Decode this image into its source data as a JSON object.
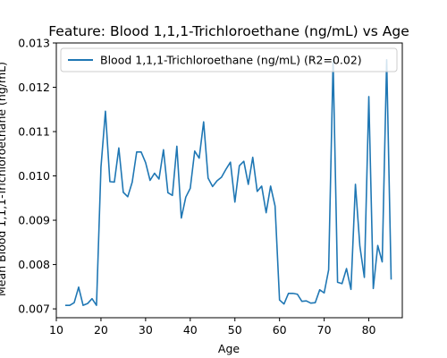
{
  "chart_data": {
    "type": "line",
    "title": "Feature: Blood 1,1,1-Trichloroethane (ng/mL) vs Age",
    "xlabel": "Age",
    "ylabel": "Mean Blood 1,1,1-Trichloroethane (ng/mL)",
    "xlim": [
      10,
      87.5
    ],
    "ylim": [
      0.0068,
      0.013
    ],
    "xticks": [
      10,
      20,
      30,
      40,
      50,
      60,
      70,
      80
    ],
    "yticks": [
      0.007,
      0.008,
      0.009,
      0.01,
      0.011,
      0.012,
      0.013
    ],
    "ytick_labels": [
      "0.007",
      "0.008",
      "0.009",
      "0.010",
      "0.011",
      "0.012",
      "0.013"
    ],
    "grid": false,
    "legend": {
      "position": "top-left"
    },
    "series": [
      {
        "name": "Blood 1,1,1-Trichloroethane (ng/mL) (R2=0.02)",
        "color": "#1f77b4",
        "x": [
          12,
          13,
          14,
          15,
          16,
          17,
          18,
          19,
          20,
          21,
          22,
          23,
          24,
          25,
          26,
          27,
          28,
          29,
          30,
          31,
          32,
          33,
          34,
          35,
          36,
          37,
          38,
          39,
          40,
          41,
          42,
          43,
          44,
          45,
          46,
          47,
          48,
          49,
          50,
          51,
          52,
          53,
          54,
          55,
          56,
          57,
          58,
          59,
          60,
          61,
          62,
          63,
          64,
          65,
          66,
          67,
          68,
          69,
          70,
          71,
          72,
          73,
          74,
          75,
          76,
          77,
          78,
          79,
          80,
          81,
          82,
          83,
          84,
          85
        ],
        "y": [
          0.00708,
          0.00708,
          0.00714,
          0.00749,
          0.00708,
          0.00712,
          0.00723,
          0.00708,
          0.0102,
          0.01146,
          0.00987,
          0.00986,
          0.01063,
          0.00963,
          0.00953,
          0.00986,
          0.01054,
          0.01054,
          0.0103,
          0.0099,
          0.01006,
          0.00993,
          0.01059,
          0.00962,
          0.00956,
          0.01067,
          0.00905,
          0.00952,
          0.00972,
          0.01056,
          0.0104,
          0.01122,
          0.00995,
          0.00976,
          0.00989,
          0.00997,
          0.01015,
          0.01031,
          0.00941,
          0.01023,
          0.01033,
          0.00981,
          0.01042,
          0.00965,
          0.00977,
          0.00917,
          0.00977,
          0.00932,
          0.0072,
          0.00711,
          0.00735,
          0.00735,
          0.00733,
          0.00717,
          0.00718,
          0.00713,
          0.00714,
          0.00743,
          0.00736,
          0.00788,
          0.0126,
          0.0076,
          0.00757,
          0.00791,
          0.00744,
          0.00981,
          0.00841,
          0.00771,
          0.01179,
          0.00746,
          0.00843,
          0.00806,
          0.01262,
          0.00766
        ]
      }
    ]
  }
}
